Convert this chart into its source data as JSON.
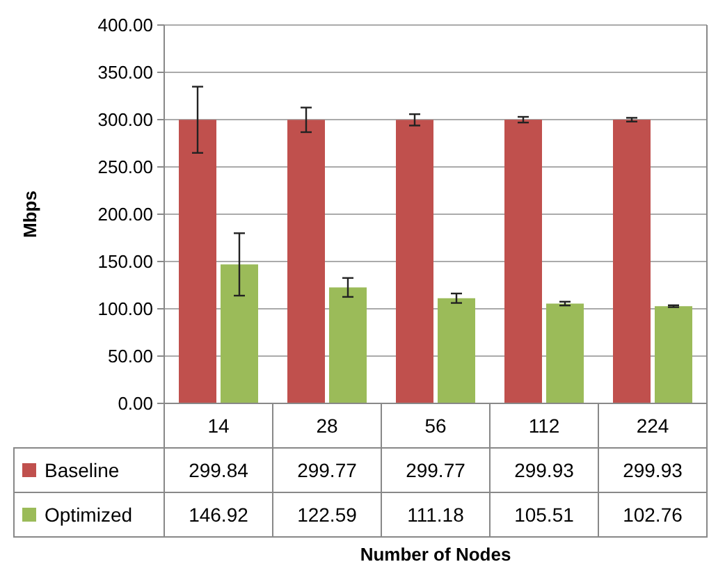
{
  "chart_data": {
    "type": "bar",
    "ylabel": "Mbps",
    "annotations": [
      "Number of Nodes"
    ],
    "categories": [
      "14",
      "28",
      "56",
      "112",
      "224"
    ],
    "series": [
      {
        "name": "Baseline",
        "color": "#c0504d",
        "values": [
          299.84,
          299.77,
          299.77,
          299.93,
          299.93
        ],
        "errors": [
          35,
          13,
          6,
          3,
          2
        ]
      },
      {
        "name": "Optimized",
        "color": "#9bbb59",
        "values": [
          146.92,
          122.59,
          111.18,
          105.51,
          102.76
        ],
        "errors": [
          33,
          10,
          5,
          2,
          1
        ]
      }
    ],
    "ylim": [
      0,
      400
    ],
    "yticks": [
      {
        "value": 0,
        "label": "0.00"
      },
      {
        "value": 50,
        "label": "50.00"
      },
      {
        "value": 100,
        "label": "100.00"
      },
      {
        "value": 150,
        "label": "150.00"
      },
      {
        "value": 200,
        "label": "200.00"
      },
      {
        "value": 250,
        "label": "250.00"
      },
      {
        "value": 300,
        "label": "300.00"
      },
      {
        "value": 350,
        "label": "350.00"
      },
      {
        "value": 400,
        "label": "400.00"
      }
    ],
    "grid": "y",
    "legend": "bottom",
    "data_labels": true
  }
}
